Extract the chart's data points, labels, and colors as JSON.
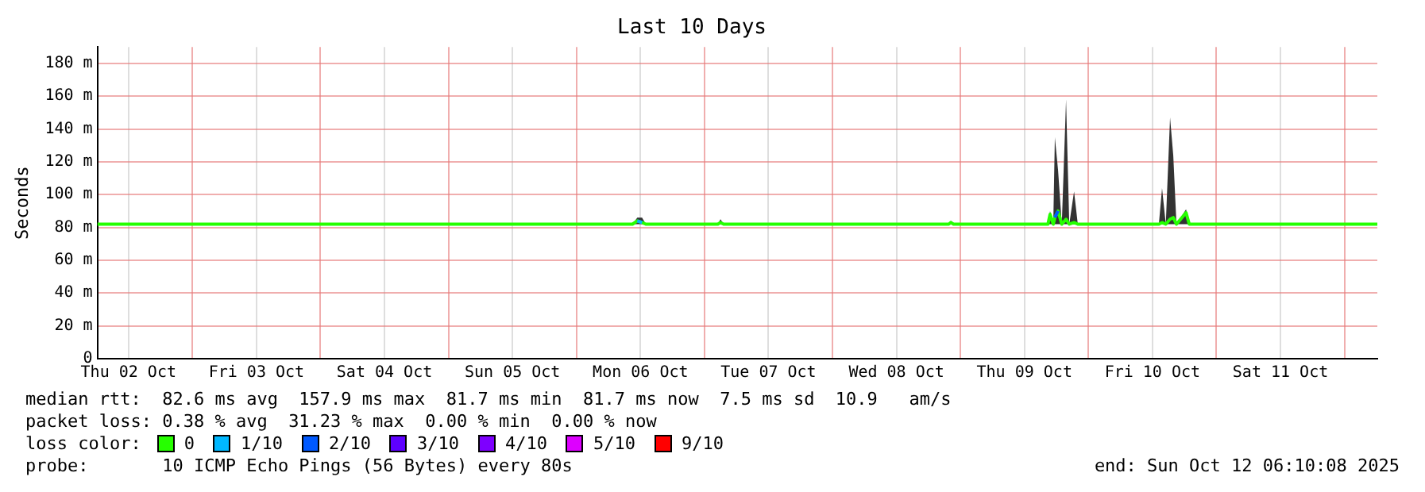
{
  "chart_data": {
    "type": "line",
    "title": "Last 10 Days",
    "ylabel": "Seconds",
    "x": [
      "2025-10-02T06:10",
      "2025-10-06T10:30",
      "2025-10-06T11:24",
      "2025-10-06T12:18",
      "2025-10-06T13:00",
      "2025-10-07T02:30",
      "2025-10-07T03:00",
      "2025-10-07T03:36",
      "2025-10-08T21:48",
      "2025-10-08T22:12",
      "2025-10-08T22:42",
      "2025-10-09T16:24",
      "2025-10-09T16:48",
      "2025-10-09T17:24",
      "2025-10-09T17:42",
      "2025-10-09T18:18",
      "2025-10-09T19:00",
      "2025-10-09T19:48",
      "2025-10-09T20:24",
      "2025-10-09T21:18",
      "2025-10-09T22:00",
      "2025-10-10T13:12",
      "2025-10-10T13:48",
      "2025-10-10T14:30",
      "2025-10-10T15:18",
      "2025-10-10T15:54",
      "2025-10-10T16:30",
      "2025-10-10T18:18",
      "2025-10-10T18:54",
      "2025-10-12T06:10"
    ],
    "series": [
      {
        "name": "0",
        "color": "#26ff00",
        "values": [
          82,
          82,
          84,
          83,
          82,
          82,
          83,
          82,
          82,
          83,
          82,
          82,
          88,
          82,
          86,
          90,
          82,
          85,
          82,
          83,
          82,
          82,
          83,
          82,
          85,
          86,
          82,
          89,
          82,
          82
        ],
        "lower": [
          82,
          82,
          82,
          82,
          82,
          82,
          82,
          82,
          82,
          82,
          82,
          82,
          82,
          82,
          82,
          82,
          82,
          82,
          82,
          82,
          82,
          82,
          82,
          82,
          82,
          82,
          82,
          82,
          82,
          82
        ],
        "upper": [
          82,
          82,
          86,
          86,
          82,
          82,
          85,
          82,
          82,
          84,
          82,
          82,
          90,
          82,
          135,
          115,
          82,
          158,
          82,
          102,
          82,
          82,
          104,
          82,
          147,
          124,
          82,
          91,
          82,
          82
        ]
      },
      {
        "name": "1/10",
        "color": "#00b8ff",
        "values": [
          null,
          null,
          84,
          83,
          null,
          null,
          null,
          null,
          null,
          null,
          null,
          null,
          null,
          null,
          null,
          null,
          null,
          null,
          null,
          null,
          null,
          null,
          null,
          null,
          null,
          null,
          null,
          null,
          null,
          null
        ]
      },
      {
        "name": "2/10",
        "color": "#0059ff",
        "values": [
          null,
          null,
          null,
          null,
          null,
          null,
          null,
          null,
          null,
          null,
          null,
          null,
          null,
          null,
          86,
          90,
          null,
          null,
          null,
          null,
          null,
          null,
          null,
          null,
          null,
          null,
          null,
          null,
          null,
          null
        ]
      },
      {
        "name": "3/10",
        "color": "#5e00ff",
        "values": [
          null,
          null,
          null,
          null,
          null,
          null,
          null,
          null,
          null,
          null,
          null,
          null,
          null,
          null,
          null,
          null,
          null,
          null,
          null,
          null,
          null,
          null,
          null,
          null,
          null,
          null,
          null,
          null,
          null,
          null
        ]
      },
      {
        "name": "4/10",
        "color": "#7e00ff",
        "values": [
          null,
          null,
          null,
          null,
          null,
          null,
          null,
          null,
          null,
          null,
          null,
          null,
          null,
          null,
          null,
          null,
          null,
          null,
          null,
          null,
          null,
          null,
          null,
          null,
          null,
          null,
          null,
          null,
          null,
          null
        ]
      },
      {
        "name": "5/10",
        "color": "#dd00ff",
        "values": [
          null,
          null,
          null,
          null,
          null,
          null,
          null,
          null,
          null,
          null,
          null,
          null,
          null,
          null,
          null,
          null,
          null,
          null,
          null,
          null,
          null,
          null,
          null,
          null,
          null,
          null,
          null,
          null,
          null,
          null
        ]
      },
      {
        "name": "9/10",
        "color": "#ff0000",
        "values": [
          null,
          null,
          null,
          null,
          null,
          null,
          null,
          null,
          null,
          null,
          null,
          null,
          null,
          null,
          null,
          null,
          null,
          null,
          null,
          null,
          null,
          null,
          null,
          null,
          null,
          null,
          null,
          null,
          null,
          null
        ]
      }
    ],
    "xlim": [
      "2025-10-02T06:10",
      "2025-10-12T06:10"
    ],
    "xticks": [
      {
        "value": "2025-10-02T12:00",
        "label": "Thu 02 Oct"
      },
      {
        "value": "2025-10-03",
        "label": null
      },
      {
        "value": "2025-10-03T12:00",
        "label": "Fri 03 Oct"
      },
      {
        "value": "2025-10-04",
        "label": null
      },
      {
        "value": "2025-10-04T12:00",
        "label": "Sat 04 Oct"
      },
      {
        "value": "2025-10-05",
        "label": null
      },
      {
        "value": "2025-10-05T12:00",
        "label": "Sun 05 Oct"
      },
      {
        "value": "2025-10-06",
        "label": null
      },
      {
        "value": "2025-10-06T12:00",
        "label": "Mon 06 Oct"
      },
      {
        "value": "2025-10-07",
        "label": null
      },
      {
        "value": "2025-10-07T12:00",
        "label": "Tue 07 Oct"
      },
      {
        "value": "2025-10-08",
        "label": null
      },
      {
        "value": "2025-10-08T12:00",
        "label": "Wed 08 Oct"
      },
      {
        "value": "2025-10-09",
        "label": null
      },
      {
        "value": "2025-10-09T12:00",
        "label": "Thu 09 Oct"
      },
      {
        "value": "2025-10-10",
        "label": null
      },
      {
        "value": "2025-10-10T12:00",
        "label": "Fri 10 Oct"
      },
      {
        "value": "2025-10-11",
        "label": null
      },
      {
        "value": "2025-10-11T12:00",
        "label": "Sat 11 Oct"
      },
      {
        "value": "2025-10-12",
        "label": null
      }
    ],
    "ylim": [
      0,
      190
    ],
    "yticks": [
      0,
      {
        "value": 20,
        "label": "20 m"
      },
      {
        "value": 40,
        "label": "40 m"
      },
      {
        "value": 60,
        "label": "60 m"
      },
      {
        "value": 80,
        "label": "80 m"
      },
      {
        "value": 100,
        "label": "100 m"
      },
      {
        "value": 120,
        "label": "120 m"
      },
      {
        "value": 140,
        "label": "140 m"
      },
      {
        "value": 160,
        "label": "160 m"
      },
      {
        "value": 180,
        "label": "180 m"
      }
    ],
    "grid": true,
    "marker": "none",
    "line_style": "solid",
    "legend": "bottom",
    "legend_title": "loss color:",
    "annotations": [
      "median rtt:  82.6 ms avg  157.9 ms max  81.7 ms min  81.7 ms now  7.5 ms sd  10.9   am/s",
      "packet loss: 0.38 % avg  31.23 % max  0.00 % min  0.00 % now",
      "probe:       10 ICMP Echo Pings (56 Bytes) every 80s",
      "end: Sun Oct 12 06:10:08 2025"
    ]
  }
}
